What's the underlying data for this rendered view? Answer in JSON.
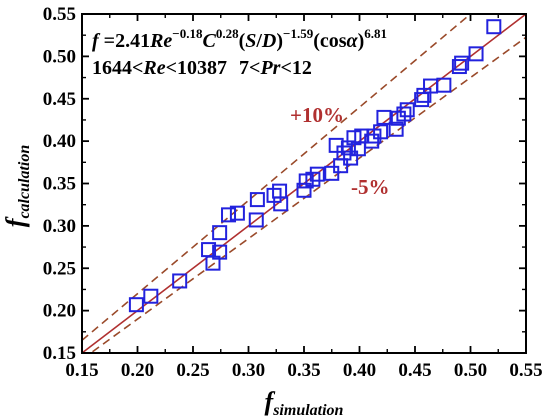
{
  "chart_data": {
    "type": "scatter",
    "title": "",
    "xlabel": {
      "main": "f",
      "sub": "simulation"
    },
    "ylabel": {
      "main": "f",
      "sub": "calculation"
    },
    "xlim": [
      0.15,
      0.55
    ],
    "ylim": [
      0.15,
      0.55
    ],
    "xticks": [
      "0.15",
      "0.20",
      "0.25",
      "0.30",
      "0.35",
      "0.40",
      "0.45",
      "0.50",
      "0.55"
    ],
    "yticks": [
      "0.15",
      "0.20",
      "0.25",
      "0.30",
      "0.35",
      "0.40",
      "0.45",
      "0.50",
      "0.55"
    ],
    "grid": false,
    "marker": "open-square",
    "colors": {
      "marker": "#2222dd",
      "fit_line": "#b03030",
      "band_line": "#9a4a2a",
      "band_label": "#b03030"
    },
    "equation": {
      "f": "f",
      "eq_coef": " =2.41",
      "re1": "Re",
      "re_exp": "−0.18",
      "c": "C",
      "c_exp": "0.28",
      "sd_open": "(",
      "sd_s": "S",
      "sd_slash": "/",
      "sd_d": "D",
      "sd_close": ")",
      "sd_exp": "−1.59",
      "cos_open": "(cos",
      "cos_alpha": "α",
      "cos_close": ")",
      "cos_exp": "6.81"
    },
    "range_text": {
      "re_lo": "1644<",
      "re": "Re",
      "re_hi": "<10387",
      "pr_lo": "7<",
      "pr": "Pr",
      "pr_hi": "<12"
    },
    "band_upper_label": "+10%",
    "band_lower_label": "-5%",
    "reference_lines": [
      {
        "kind": "solid",
        "slope": 1.0
      },
      {
        "kind": "dashed",
        "slope": 1.1
      },
      {
        "kind": "dashed",
        "slope": 0.95
      }
    ],
    "points": [
      [
        0.199,
        0.207
      ],
      [
        0.212,
        0.217
      ],
      [
        0.238,
        0.235
      ],
      [
        0.264,
        0.272
      ],
      [
        0.268,
        0.256
      ],
      [
        0.274,
        0.292
      ],
      [
        0.274,
        0.269
      ],
      [
        0.282,
        0.313
      ],
      [
        0.29,
        0.315
      ],
      [
        0.307,
        0.307
      ],
      [
        0.308,
        0.331
      ],
      [
        0.323,
        0.336
      ],
      [
        0.328,
        0.341
      ],
      [
        0.329,
        0.326
      ],
      [
        0.35,
        0.342
      ],
      [
        0.352,
        0.353
      ],
      [
        0.358,
        0.355
      ],
      [
        0.362,
        0.361
      ],
      [
        0.375,
        0.362
      ],
      [
        0.379,
        0.395
      ],
      [
        0.383,
        0.371
      ],
      [
        0.386,
        0.386
      ],
      [
        0.39,
        0.392
      ],
      [
        0.392,
        0.38
      ],
      [
        0.395,
        0.404
      ],
      [
        0.399,
        0.391
      ],
      [
        0.402,
        0.406
      ],
      [
        0.411,
        0.4
      ],
      [
        0.413,
        0.406
      ],
      [
        0.419,
        0.411
      ],
      [
        0.422,
        0.428
      ],
      [
        0.433,
        0.414
      ],
      [
        0.435,
        0.427
      ],
      [
        0.44,
        0.432
      ],
      [
        0.443,
        0.437
      ],
      [
        0.456,
        0.449
      ],
      [
        0.458,
        0.454
      ],
      [
        0.464,
        0.465
      ],
      [
        0.476,
        0.466
      ],
      [
        0.49,
        0.488
      ],
      [
        0.492,
        0.492
      ],
      [
        0.505,
        0.503
      ],
      [
        0.521,
        0.535
      ]
    ]
  }
}
